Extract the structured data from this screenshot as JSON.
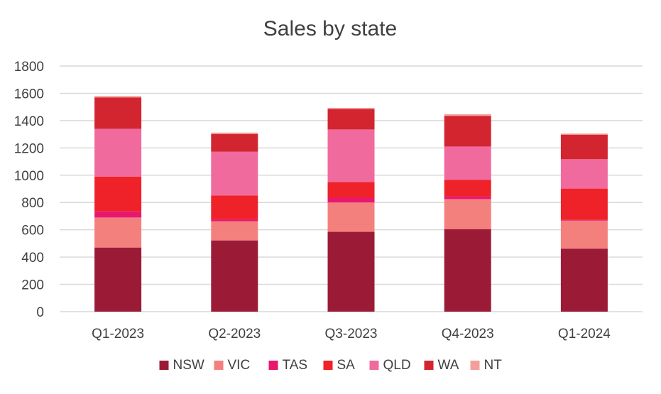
{
  "chart_data": {
    "type": "bar",
    "stacked": true,
    "title": "Sales by state",
    "xlabel": "",
    "ylabel": "",
    "ylim": [
      0,
      1800
    ],
    "yticks": [
      0,
      200,
      400,
      600,
      800,
      1000,
      1200,
      1400,
      1600,
      1800
    ],
    "grid": true,
    "legend_position": "bottom",
    "categories": [
      "Q1-2023",
      "Q2-2023",
      "Q3-2023",
      "Q4-2023",
      "Q1-2024"
    ],
    "series": [
      {
        "name": "NSW",
        "color": "#9b1b37",
        "values": [
          470,
          522,
          585,
          605,
          462
        ]
      },
      {
        "name": "VIC",
        "color": "#f4807e",
        "values": [
          220,
          140,
          215,
          220,
          205
        ]
      },
      {
        "name": "TAS",
        "color": "#e8186e",
        "values": [
          45,
          15,
          35,
          20,
          5
        ]
      },
      {
        "name": "SA",
        "color": "#ee2228",
        "values": [
          255,
          175,
          115,
          120,
          230
        ]
      },
      {
        "name": "QLD",
        "color": "#f06a9e",
        "values": [
          350,
          320,
          385,
          245,
          215
        ]
      },
      {
        "name": "WA",
        "color": "#d22530",
        "values": [
          230,
          130,
          150,
          225,
          180
        ]
      },
      {
        "name": "NT",
        "color": "#f4a09a",
        "values": [
          10,
          10,
          8,
          12,
          8
        ]
      }
    ]
  }
}
